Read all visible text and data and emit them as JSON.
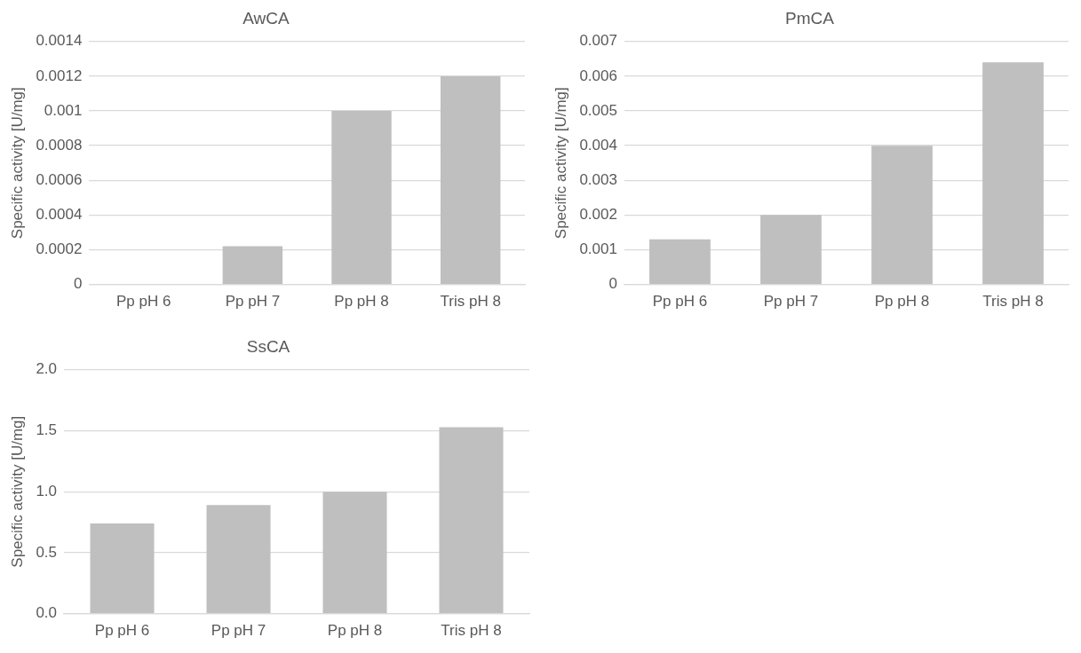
{
  "chart_data": [
    {
      "type": "bar",
      "title": "AwCA",
      "ylabel": "Specific activity [U/mg]",
      "categories": [
        "Pp pH 6",
        "Pp pH 7",
        "Pp pH 8",
        "Tris pH 8"
      ],
      "values": [
        0,
        0.00022,
        0.001,
        0.0012
      ],
      "color": "#bfbfbf",
      "ylim": [
        0,
        0.0014
      ],
      "yticks": [
        0,
        0.0002,
        0.0004,
        0.0006,
        0.0008,
        0.001,
        0.0012,
        0.0014
      ],
      "grid": "y"
    },
    {
      "type": "bar",
      "title": "PmCA",
      "ylabel": "Specific activity [U/mg]",
      "categories": [
        "Pp pH 6",
        "Pp pH 7",
        "Pp pH 8",
        "Tris pH 8"
      ],
      "values": [
        0.0013,
        0.002,
        0.004,
        0.0064
      ],
      "color": "#bfbfbf",
      "ylim": [
        0,
        0.007
      ],
      "yticks": [
        0,
        0.001,
        0.002,
        0.003,
        0.004,
        0.005,
        0.006,
        0.007
      ],
      "grid": "y"
    },
    {
      "type": "bar",
      "title": "SsCA",
      "ylabel": "Specific activity [U/mg]",
      "categories": [
        "Pp pH 6",
        "Pp pH 7",
        "Pp pH 8",
        "Tris pH 8"
      ],
      "values": [
        0.74,
        0.89,
        1.0,
        1.53
      ],
      "color": "#bfbfbf",
      "ylim": [
        0,
        2
      ],
      "yticks": [
        {
          "value": 0,
          "label": "0.0"
        },
        0.5,
        {
          "value": 1,
          "label": "1.0"
        },
        1.5,
        {
          "value": 2,
          "label": "2.0"
        }
      ],
      "grid": "y"
    }
  ]
}
